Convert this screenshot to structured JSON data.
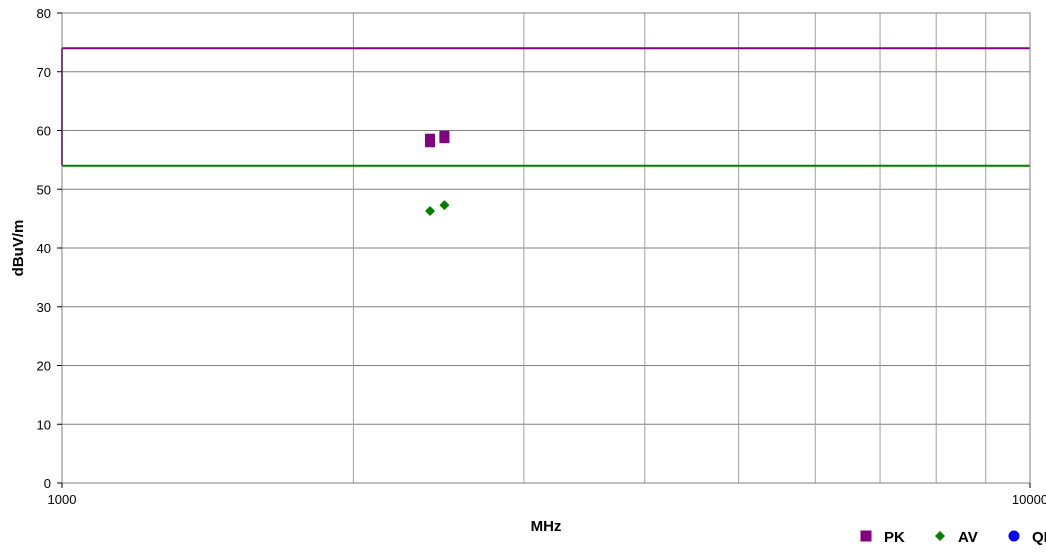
{
  "chart_data": {
    "type": "scatter",
    "xscale": "log",
    "xlim": [
      1000,
      10000
    ],
    "ylim": [
      0,
      80
    ],
    "x_ticks": [
      "1000",
      "10000"
    ],
    "y_ticks": [
      0,
      10,
      20,
      30,
      40,
      50,
      60,
      70,
      80
    ],
    "xlabel": "MHz",
    "ylabel": "dBuV/m",
    "grid": true,
    "legend_position": "bottom-right",
    "limits": [
      {
        "value": 74,
        "color": "#800080"
      },
      {
        "value": 54,
        "color": "#008000"
      }
    ],
    "series": [
      {
        "name": "PK",
        "marker": "square",
        "color": "#800080",
        "points": [
          [
            2400,
            58.0
          ],
          [
            2400,
            58.6
          ],
          [
            2483.5,
            58.7
          ],
          [
            2483.5,
            59.1
          ]
        ]
      },
      {
        "name": "AV",
        "marker": "diamond",
        "color": "#008000",
        "points": [
          [
            2400,
            46.3
          ],
          [
            2483.5,
            47.3
          ]
        ]
      },
      {
        "name": "QP",
        "marker": "circle",
        "color": "#0000ff",
        "points": []
      }
    ]
  }
}
